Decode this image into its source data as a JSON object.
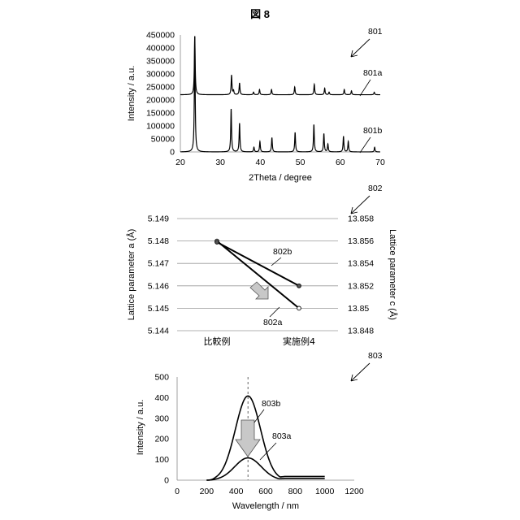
{
  "figure_title": "図 8",
  "chart_data": [
    {
      "type": "line",
      "ref": "801",
      "xlabel": "2Theta / degree",
      "ylabel": "Intensity / a.u.",
      "xlim": [
        20,
        70
      ],
      "ylim": [
        0,
        450000
      ],
      "x_ticks": [
        "20",
        "30",
        "40",
        "50",
        "60",
        "70"
      ],
      "y_ticks": [
        "0",
        "50000",
        "100000",
        "150000",
        "200000",
        "250000",
        "300000",
        "350000",
        "400000",
        "450000"
      ],
      "series": [
        {
          "name": "801a",
          "baseline": 220000,
          "peaks": [
            [
              23.6,
              225000
            ],
            [
              32.8,
              75000
            ],
            [
              33.3,
              15000
            ],
            [
              34.8,
              45000
            ],
            [
              38.3,
              10000
            ],
            [
              39.8,
              20000
            ],
            [
              42.8,
              20000
            ],
            [
              48.6,
              30000
            ],
            [
              53.5,
              40000
            ],
            [
              56.1,
              25000
            ],
            [
              57.2,
              10000
            ],
            [
              61.0,
              20000
            ],
            [
              62.8,
              15000
            ],
            [
              68.5,
              10000
            ]
          ]
        },
        {
          "name": "801b",
          "baseline": 0,
          "peaks": [
            [
              23.6,
              445000
            ],
            [
              32.7,
              165000
            ],
            [
              34.8,
              110000
            ],
            [
              38.4,
              18000
            ],
            [
              39.9,
              40000
            ],
            [
              42.9,
              55000
            ],
            [
              48.7,
              75000
            ],
            [
              53.4,
              105000
            ],
            [
              55.9,
              70000
            ],
            [
              56.9,
              30000
            ],
            [
              60.8,
              60000
            ],
            [
              62.0,
              40000
            ],
            [
              68.6,
              18000
            ]
          ]
        }
      ]
    },
    {
      "type": "line",
      "ref": "802",
      "ylabel": "Lattice parameter a (Å)",
      "ylabel_right": "Lattice parameter c (Å)",
      "categories": [
        "比較例",
        "実施例4"
      ],
      "ylim_left": [
        5.144,
        5.149
      ],
      "ylim_right": [
        13.848,
        13.858
      ],
      "y_ticks_left": [
        "5.149",
        "5.148",
        "5.147",
        "5.146",
        "5.145",
        "5.144"
      ],
      "y_ticks_right": [
        "13.858",
        "13.856",
        "13.854",
        "13.852",
        "13.85",
        "13.848"
      ],
      "series": [
        {
          "name": "802a",
          "axis": "left",
          "values": [
            5.148,
            5.145
          ]
        },
        {
          "name": "802b",
          "axis": "right",
          "values": [
            13.8559,
            13.852
          ]
        }
      ]
    },
    {
      "type": "line",
      "ref": "803",
      "xlabel": "Wavelength / nm",
      "ylabel": "Intensity / a.u.",
      "xlim": [
        0,
        1200
      ],
      "ylim": [
        0,
        500
      ],
      "x_ticks": [
        "0",
        "200",
        "400",
        "600",
        "800",
        "1000",
        "1200"
      ],
      "y_ticks": [
        "0",
        "100",
        "200",
        "300",
        "400",
        "500"
      ],
      "dashed_x": 480,
      "series": [
        {
          "name": "803b",
          "peak_x": 480,
          "peak_y": 408,
          "sigma": 85,
          "x_start": 200,
          "x_end": 1000,
          "tail": 18
        },
        {
          "name": "803a",
          "peak_x": 480,
          "peak_y": 108,
          "sigma": 90,
          "x_start": 200,
          "x_end": 1000,
          "tail": 8
        }
      ]
    }
  ]
}
